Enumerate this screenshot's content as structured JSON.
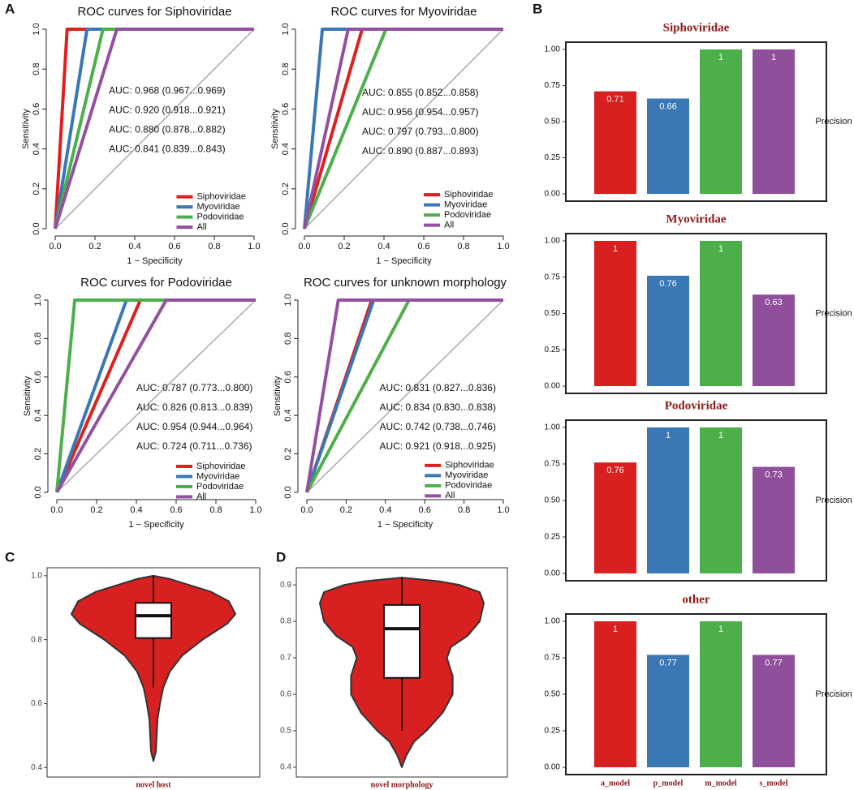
{
  "panel_labels": [
    "A",
    "B",
    "C",
    "D"
  ],
  "chart_data": [
    {
      "type": "line",
      "title": "ROC curves for Siphoviridae",
      "xlabel": "1 − Specificity",
      "ylabel": "Sensitivity",
      "xlim": [
        0,
        1
      ],
      "ylim": [
        0,
        1
      ],
      "xticks": [
        {
          "value": 0,
          "label": "0.0"
        },
        0.2,
        0.4,
        0.6,
        0.8,
        {
          "value": 1,
          "label": "1.0"
        }
      ],
      "yticks": [
        {
          "value": 0,
          "label": "0.0"
        },
        0.2,
        0.4,
        0.6,
        0.8,
        {
          "value": 1,
          "label": "1.0"
        }
      ],
      "legend": "bottom right",
      "series": [
        {
          "name": "Siphoviridae",
          "color": "#e0201e",
          "x": [
            0,
            0.06,
            1
          ],
          "values": [
            0,
            1,
            1
          ],
          "annotation": "AUC: 0.968 (0.967...0.969)"
        },
        {
          "name": "Myoviridae",
          "color": "#3a78b5",
          "x": [
            0,
            0.16,
            1
          ],
          "values": [
            0,
            1,
            1
          ],
          "annotation": "AUC: 0.920 (0.918...0.921)"
        },
        {
          "name": "Podoviridae",
          "color": "#4caf4a",
          "x": [
            0,
            0.24,
            1
          ],
          "values": [
            0,
            1,
            1
          ],
          "annotation": "AUC: 0.880 (0.878...0.882)"
        },
        {
          "name": "All",
          "color": "#9350a1",
          "x": [
            0,
            0.31,
            1
          ],
          "values": [
            0,
            1,
            1
          ],
          "annotation": "AUC: 0.841 (0.839...0.843)"
        }
      ]
    },
    {
      "type": "line",
      "title": "ROC curves for Myoviridae",
      "xlabel": "1 − Specificity",
      "ylabel": "Sensitivity",
      "xlim": [
        0,
        1
      ],
      "ylim": [
        0,
        1
      ],
      "xticks": [
        {
          "value": 0,
          "label": "0.0"
        },
        0.2,
        0.4,
        0.6,
        0.8,
        {
          "value": 1,
          "label": "1.0"
        }
      ],
      "yticks": [
        {
          "value": 0,
          "label": "0.0"
        },
        0.2,
        0.4,
        0.6,
        0.8,
        {
          "value": 1,
          "label": "1.0"
        }
      ],
      "legend": "bottom right",
      "series": [
        {
          "name": "Siphoviridae",
          "color": "#e0201e",
          "x": [
            0,
            0.29,
            1
          ],
          "values": [
            0,
            1,
            1
          ],
          "annotation": "AUC: 0.855 (0.852...0.858)"
        },
        {
          "name": "Myoviridae",
          "color": "#3a78b5",
          "x": [
            0,
            0.09,
            1
          ],
          "values": [
            0,
            1,
            1
          ],
          "annotation": "AUC: 0.956 (0.954...0.957)"
        },
        {
          "name": "Podoviridae",
          "color": "#4caf4a",
          "x": [
            0,
            0.41,
            1
          ],
          "values": [
            0,
            1,
            1
          ],
          "annotation": "AUC: 0.797 (0.793...0.800)"
        },
        {
          "name": "All",
          "color": "#9350a1",
          "x": [
            0,
            0.22,
            1
          ],
          "values": [
            0,
            1,
            1
          ],
          "annotation": "AUC: 0.890 (0.887...0.893)"
        }
      ]
    },
    {
      "type": "line",
      "title": "ROC curves for Podoviridae",
      "xlabel": "1 − Specificity",
      "ylabel": "Sensitivity",
      "xlim": [
        0,
        1
      ],
      "ylim": [
        0,
        1
      ],
      "xticks": [
        {
          "value": 0,
          "label": "0.0"
        },
        0.2,
        0.4,
        0.6,
        0.8,
        {
          "value": 1,
          "label": "1.0"
        }
      ],
      "yticks": [
        {
          "value": 0,
          "label": "0.0"
        },
        0.2,
        0.4,
        0.6,
        0.8,
        {
          "value": 1,
          "label": "1.0"
        }
      ],
      "legend": "bottom right",
      "series": [
        {
          "name": "Siphoviridae",
          "color": "#e0201e",
          "x": [
            0,
            0.42,
            1
          ],
          "values": [
            0,
            1,
            1
          ],
          "annotation": "AUC: 0.787 (0.773...0.800)"
        },
        {
          "name": "Myoviridae",
          "color": "#3a78b5",
          "x": [
            0,
            0.35,
            1
          ],
          "values": [
            0,
            1,
            1
          ],
          "annotation": "AUC: 0.826 (0.813...0.839)"
        },
        {
          "name": "Podoviridae",
          "color": "#4caf4a",
          "x": [
            0,
            0.09,
            1
          ],
          "values": [
            0,
            1,
            1
          ],
          "annotation": "AUC: 0.954 (0.944...0.964)"
        },
        {
          "name": "All",
          "color": "#9350a1",
          "x": [
            0,
            0.55,
            1
          ],
          "values": [
            0,
            1,
            1
          ],
          "annotation": "AUC: 0.724 (0.711...0.736)"
        }
      ]
    },
    {
      "type": "line",
      "title": "ROC curves for unknown morphology",
      "xlabel": "1 − Specificity",
      "ylabel": "Sensitivity",
      "xlim": [
        0,
        1
      ],
      "ylim": [
        0,
        1
      ],
      "xticks": [
        {
          "value": 0,
          "label": "0.0"
        },
        0.2,
        0.4,
        0.6,
        0.8,
        {
          "value": 1,
          "label": "1.0"
        }
      ],
      "yticks": [
        {
          "value": 0,
          "label": "0.0"
        },
        0.2,
        0.4,
        0.6,
        0.8,
        {
          "value": 1,
          "label": "1.0"
        }
      ],
      "legend": "bottom right",
      "series": [
        {
          "name": "Siphoviridae",
          "color": "#e0201e",
          "x": [
            0,
            0.33,
            1
          ],
          "values": [
            0,
            1,
            1
          ],
          "annotation": "AUC: 0.831 (0.827...0.836)"
        },
        {
          "name": "Myoviridae",
          "color": "#3a78b5",
          "x": [
            0,
            0.34,
            1
          ],
          "values": [
            0,
            1,
            1
          ],
          "annotation": "AUC: 0.834 (0.830...0.838)"
        },
        {
          "name": "Podoviridae",
          "color": "#4caf4a",
          "x": [
            0,
            0.52,
            1
          ],
          "values": [
            0,
            1,
            1
          ],
          "annotation": "AUC: 0.742 (0.738...0.746)"
        },
        {
          "name": "All",
          "color": "#9350a1",
          "x": [
            0,
            0.16,
            1
          ],
          "values": [
            0,
            1,
            1
          ],
          "annotation": "AUC: 0.921 (0.918...0.925)"
        }
      ]
    },
    {
      "type": "bar",
      "title": "Siphoviridae",
      "ylabel": "Precision",
      "ylim": [
        -0.05,
        1.05
      ],
      "yticks": [
        {
          "value": 0,
          "label": "0.00"
        },
        0.25,
        {
          "value": 0.5,
          "label": "0.50"
        },
        0.75,
        {
          "value": 1,
          "label": "1.00"
        }
      ],
      "colors": [
        "#d7201f",
        "#3a78b5",
        "#4caf4a",
        "#8f4f9b"
      ],
      "values": [
        0.71,
        0.66,
        1,
        1
      ]
    },
    {
      "type": "bar",
      "title": "Myoviridae",
      "ylabel": "Precision",
      "ylim": [
        -0.05,
        1.05
      ],
      "yticks": [
        {
          "value": 0,
          "label": "0.00"
        },
        0.25,
        {
          "value": 0.5,
          "label": "0.50"
        },
        0.75,
        {
          "value": 1,
          "label": "1.00"
        }
      ],
      "colors": [
        "#d7201f",
        "#3a78b5",
        "#4caf4a",
        "#8f4f9b"
      ],
      "values": [
        1,
        0.76,
        1,
        0.63
      ]
    },
    {
      "type": "bar",
      "title": "Podoviridae",
      "ylabel": "Precision",
      "ylim": [
        -0.05,
        1.05
      ],
      "yticks": [
        {
          "value": 0,
          "label": "0.00"
        },
        0.25,
        {
          "value": 0.5,
          "label": "0.50"
        },
        0.75,
        {
          "value": 1,
          "label": "1.00"
        }
      ],
      "colors": [
        "#d7201f",
        "#3a78b5",
        "#4caf4a",
        "#8f4f9b"
      ],
      "values": [
        0.76,
        1,
        1,
        0.73
      ]
    },
    {
      "type": "bar",
      "title": "other",
      "ylabel": "Precision",
      "ylim": [
        -0.05,
        1.05
      ],
      "yticks": [
        {
          "value": 0,
          "label": "0.00"
        },
        0.25,
        {
          "value": 0.5,
          "label": "0.50"
        },
        0.75,
        {
          "value": 1,
          "label": "1.00"
        }
      ],
      "categories": [
        "a_model",
        "p_model",
        "m_model",
        "s_model"
      ],
      "colors": [
        "#d7201f",
        "#3a78b5",
        "#4caf4a",
        "#8f4f9b"
      ],
      "values": [
        1,
        0.77,
        1,
        0.77
      ]
    },
    {
      "type": "violin",
      "categories": [
        "novel host"
      ],
      "color": "#d7201f",
      "ylim": [
        0.37,
        1.025
      ],
      "yticks": [
        0.4,
        0.6,
        0.8,
        {
          "value": 1,
          "label": "1.0"
        }
      ],
      "density_y": [
        0.42,
        0.45,
        0.5,
        0.55,
        0.6,
        0.65,
        0.7,
        0.75,
        0.8,
        0.85,
        0.88,
        0.92,
        0.95,
        0.97,
        0.99,
        1.0
      ],
      "density": [
        0,
        0.03,
        0.04,
        0.05,
        0.08,
        0.12,
        0.2,
        0.35,
        0.6,
        0.9,
        1,
        0.92,
        0.7,
        0.45,
        0.2,
        0
      ],
      "box": {
        "whisker_low": 0.65,
        "q1": 0.805,
        "median": 0.875,
        "q3": 0.915,
        "whisker_high": 1.0
      }
    },
    {
      "type": "violin",
      "categories": [
        "novel morphology"
      ],
      "color": "#d7201f",
      "ylim": [
        0.373,
        0.947
      ],
      "yticks": [
        0.4,
        0.5,
        0.6,
        0.7,
        0.8,
        0.9
      ],
      "density_y": [
        0.4,
        0.43,
        0.47,
        0.5,
        0.55,
        0.6,
        0.65,
        0.7,
        0.73,
        0.76,
        0.8,
        0.85,
        0.88,
        0.9,
        0.91,
        0.92
      ],
      "density": [
        0,
        0.05,
        0.15,
        0.3,
        0.5,
        0.62,
        0.62,
        0.55,
        0.6,
        0.8,
        0.95,
        1,
        0.95,
        0.7,
        0.45,
        0
      ],
      "box": {
        "whisker_low": 0.5,
        "q1": 0.645,
        "median": 0.78,
        "q3": 0.845,
        "whisker_high": 0.92
      }
    }
  ]
}
